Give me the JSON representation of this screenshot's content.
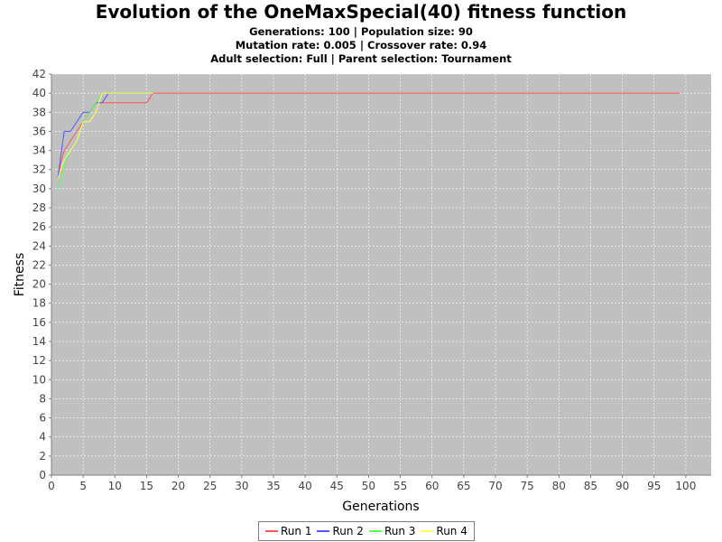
{
  "chart_data": {
    "type": "line",
    "title": "Evolution of the OneMaxSpecial(40) fitness function",
    "subtitles": [
      "Generations: 100 | Population size: 90",
      "Mutation rate: 0.005 | Crossover rate: 0.94",
      "Adult selection: Full | Parent selection: Tournament"
    ],
    "xlabel": "Generations",
    "ylabel": "Fitness",
    "xlim": [
      0,
      104
    ],
    "ylim": [
      0,
      42
    ],
    "xticks": [
      0,
      5,
      10,
      15,
      20,
      25,
      30,
      35,
      40,
      45,
      50,
      55,
      60,
      65,
      70,
      75,
      80,
      85,
      90,
      95,
      100
    ],
    "yticks": [
      0,
      2,
      4,
      6,
      8,
      10,
      12,
      14,
      16,
      18,
      20,
      22,
      24,
      26,
      28,
      30,
      32,
      34,
      36,
      38,
      40,
      42
    ],
    "grid": true,
    "legend_position": "bottom",
    "series": [
      {
        "name": "Run 1",
        "color": "#ff5555",
        "x": [
          1,
          1.4,
          2,
          3,
          4,
          5,
          6,
          7,
          8,
          9,
          10,
          11,
          12,
          13,
          14,
          15,
          16,
          99
        ],
        "y": [
          31,
          32.5,
          34,
          35,
          36,
          37,
          38,
          39,
          39,
          39,
          39,
          39,
          39,
          39,
          39,
          39,
          40,
          40
        ]
      },
      {
        "name": "Run 2",
        "color": "#5555ff",
        "x": [
          1,
          1.4,
          2,
          3,
          4,
          5,
          6,
          7,
          8,
          9,
          10,
          16
        ],
        "y": [
          31,
          33,
          36,
          36,
          37,
          38,
          38,
          39,
          39,
          40,
          40,
          40
        ]
      },
      {
        "name": "Run 3",
        "color": "#55ff55",
        "x": [
          1,
          1.5,
          2,
          3,
          4,
          5,
          6,
          7,
          8,
          9,
          10,
          16
        ],
        "y": [
          30,
          31,
          32.5,
          34,
          35,
          37,
          38,
          39,
          40,
          40,
          40,
          40
        ]
      },
      {
        "name": "Run 4",
        "color": "#ffff55",
        "x": [
          1,
          1.5,
          2,
          3,
          4,
          5,
          6,
          7,
          8,
          9,
          10,
          16
        ],
        "y": [
          31,
          32,
          33,
          34,
          35,
          37,
          37,
          38,
          40,
          40,
          40,
          40
        ]
      }
    ]
  }
}
